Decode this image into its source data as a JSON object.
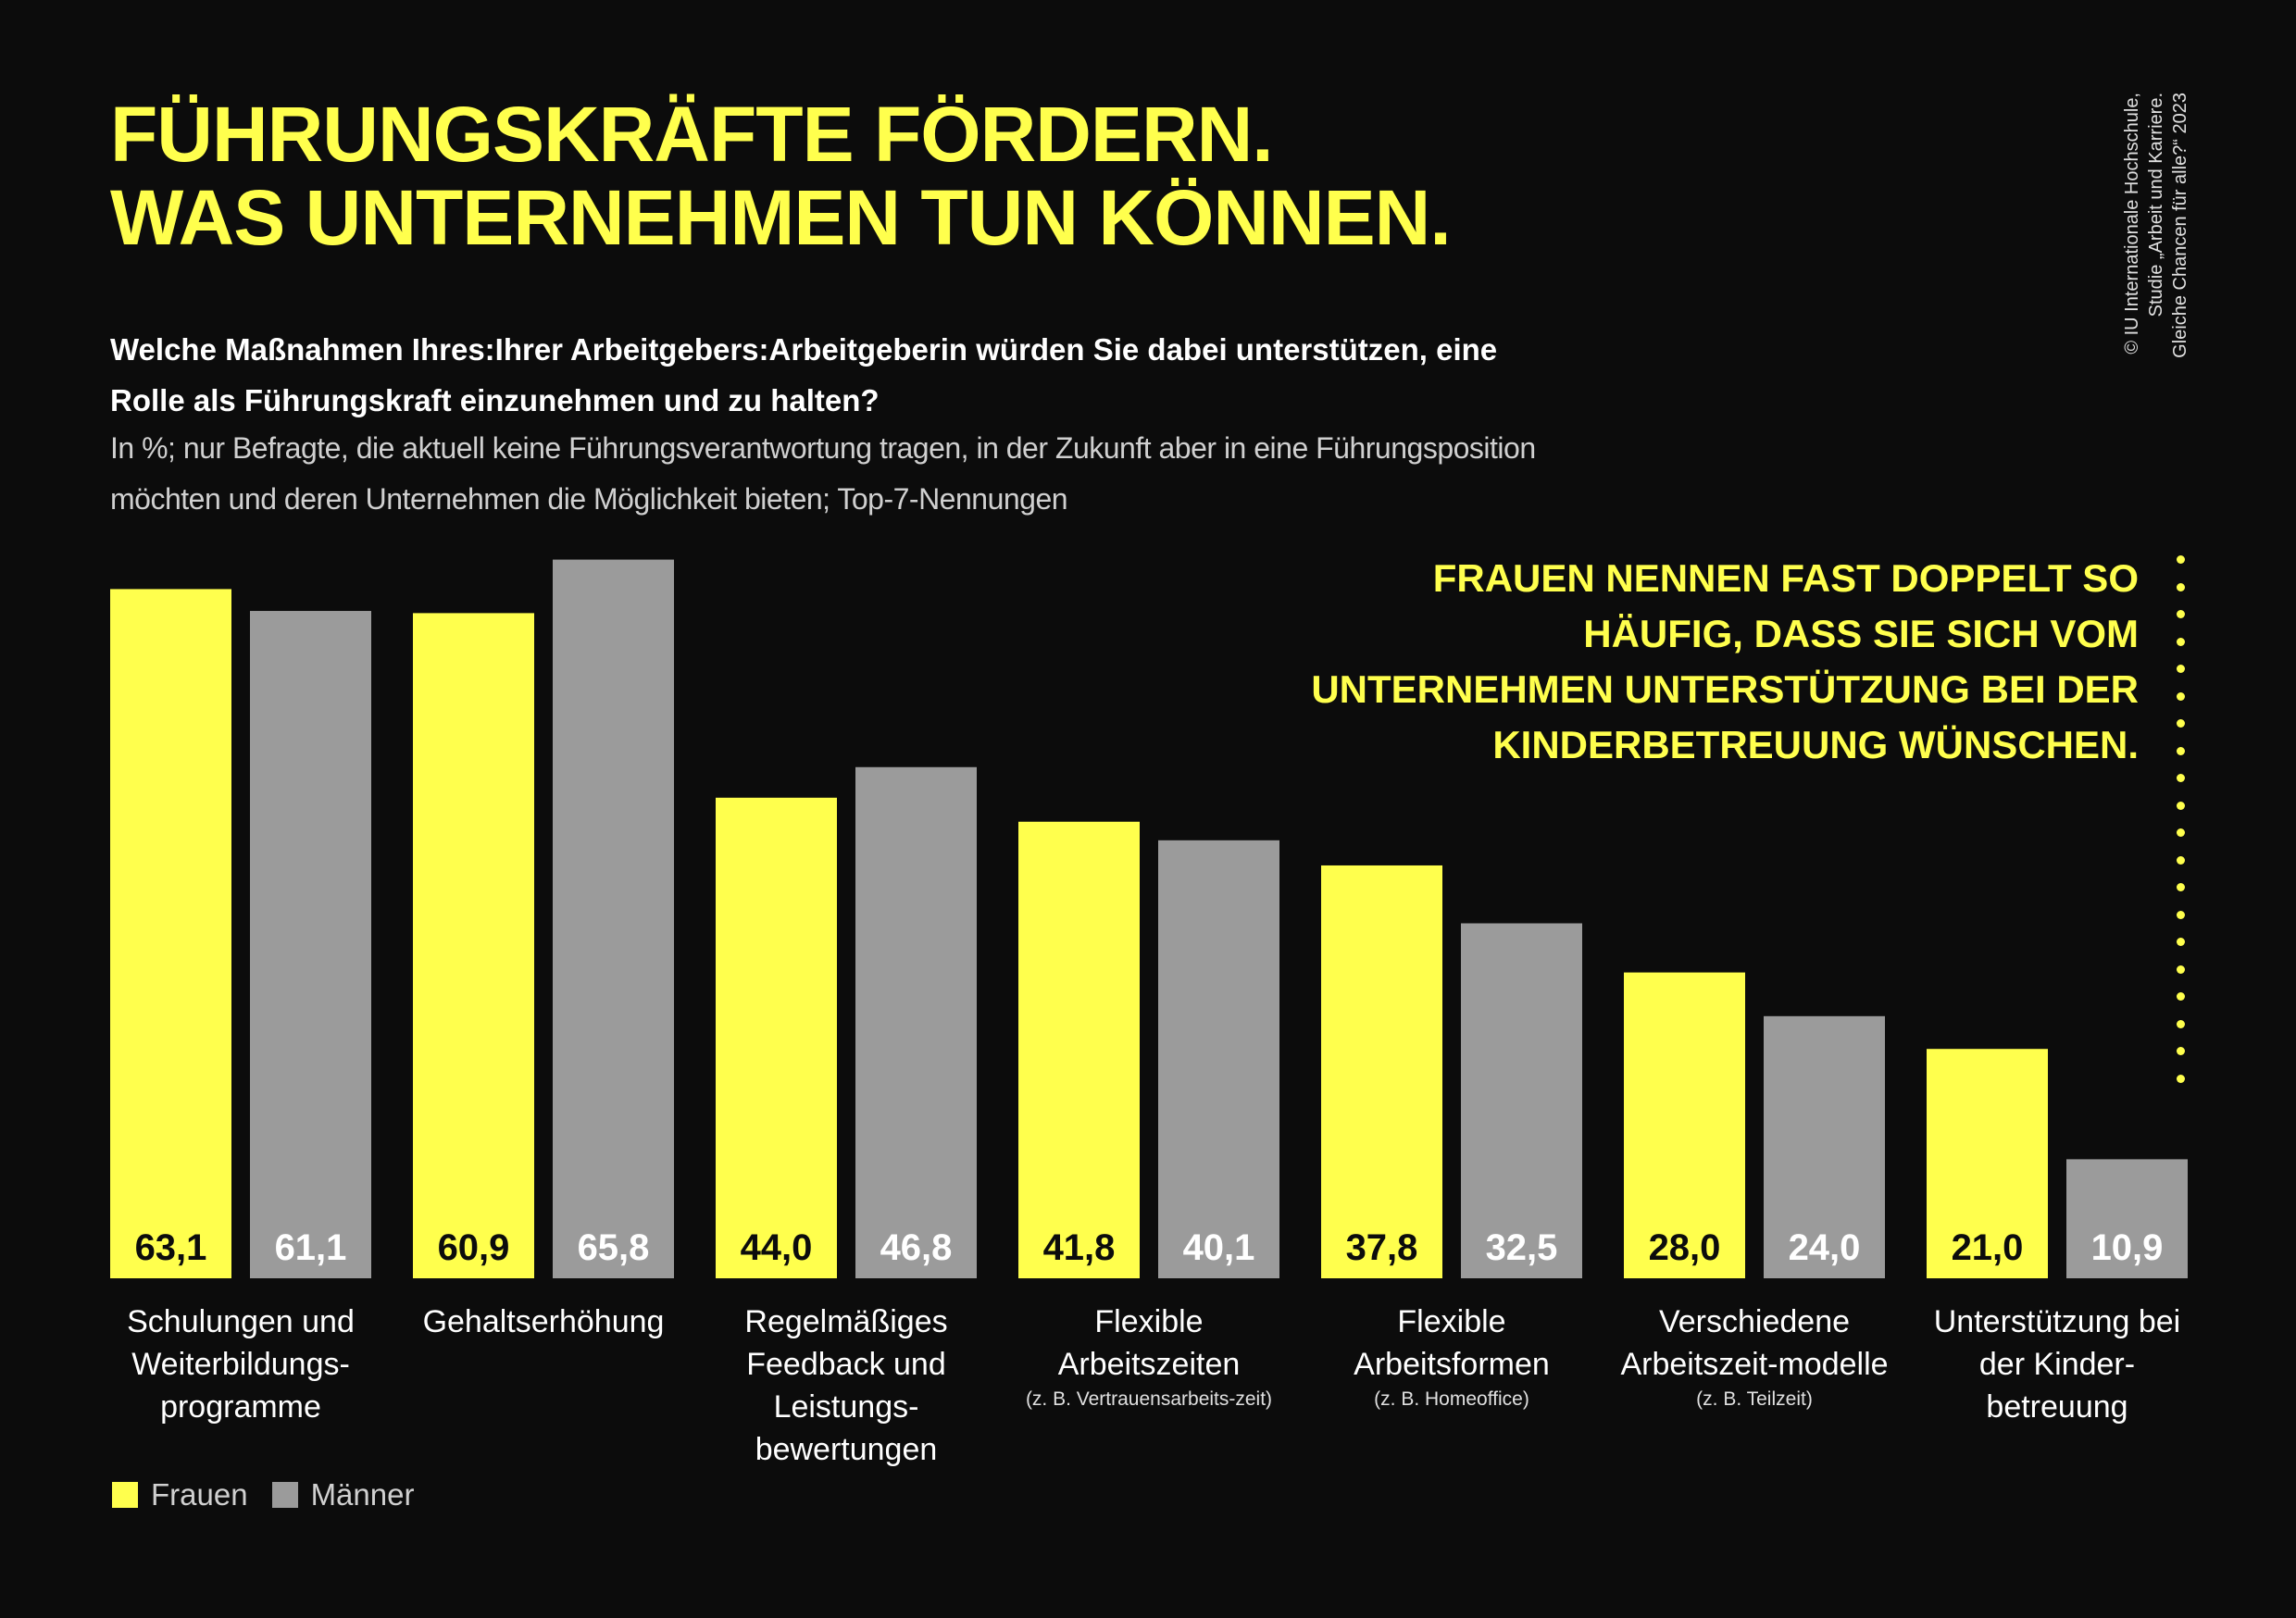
{
  "title_lines": [
    "FÜHRUNGSKRÄFTE FÖRDERN.",
    "WAS UNTERNEHMEN TUN KÖNNEN."
  ],
  "question": "Welche Maßnahmen Ihres:Ihrer Arbeitgebers:Arbeitgeberin würden Sie dabei unterstützen, eine Rolle als Führungskraft einzunehmen und zu halten?",
  "note": "In %; nur Befragte, die aktuell keine Führungsverantwortung tragen, in der Zukunft aber in eine Führungsposition möchten und deren Unternehmen die Möglichkeit bieten; Top-7-Nennungen",
  "callout": "FRAUEN NENNEN FAST DOPPELT SO HÄUFIG, DASS SIE SICH VOM UNTERNEHMEN UNTERSTÜTZUNG BEI DER KINDERBETREUUNG WÜNSCHEN.",
  "source_lines": [
    "© IU Internationale Hochschule,",
    "Studie „Arbeit und Karriere.",
    "Gleiche Chancen für alle?“ 2023"
  ],
  "colors": {
    "frauen": "#ffff4d",
    "maenner": "#9b9b9b",
    "background": "#0c0c0c"
  },
  "chart_data": {
    "type": "bar",
    "categories": [
      "Schulungen und Weiterbildungs-programme",
      "Gehaltserhöhung",
      "Regelmäßiges Feedback und Leistungs-bewertungen",
      "Flexible Arbeitszeiten",
      "Flexible Arbeitsformen",
      "Verschiedene Arbeitszeit-modelle",
      "Unterstützung bei der Kinder-betreuung"
    ],
    "category_notes": [
      "",
      "",
      "",
      "(z. B. Vertrauensarbeits-zeit)",
      "(z. B. Homeoffice)",
      "(z. B. Teilzeit)",
      ""
    ],
    "series": [
      {
        "name": "Frauen",
        "values": [
          63.1,
          60.9,
          44.0,
          41.8,
          37.8,
          28.0,
          21.0
        ],
        "labels": [
          "63,1",
          "60,9",
          "44,0",
          "41,8",
          "37,8",
          "28,0",
          "21,0"
        ]
      },
      {
        "name": "Männer",
        "values": [
          61.1,
          65.8,
          46.8,
          40.1,
          32.5,
          24.0,
          10.9
        ],
        "labels": [
          "61,1",
          "65,8",
          "46,8",
          "40,1",
          "32,5",
          "24,0",
          "10,9"
        ]
      }
    ],
    "ylim": [
      0,
      70
    ],
    "grid": false,
    "legend_position": "bottom-left"
  }
}
